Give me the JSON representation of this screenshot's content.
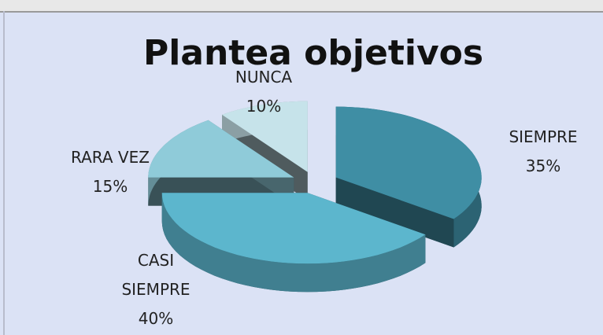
{
  "chart_data": {
    "type": "pie",
    "title": "Plantea objetivos",
    "categories": [
      "SIEMPRE",
      "CASI SIEMPRE",
      "RARA VEZ",
      "NUNCA"
    ],
    "values": [
      35,
      40,
      15,
      10
    ],
    "value_labels": [
      "35%",
      "40%",
      "15%",
      "10%"
    ],
    "colors": [
      "#3f8ea4",
      "#5cb6cd",
      "#8fcbd9",
      "#c6e3ea"
    ]
  }
}
